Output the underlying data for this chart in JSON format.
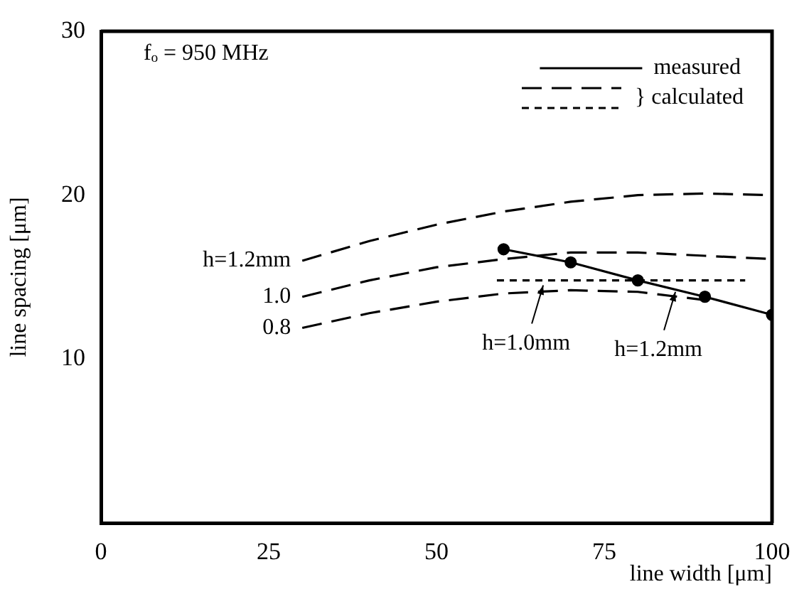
{
  "chart_data": {
    "type": "line",
    "xlabel": "line width [μm]",
    "ylabel": "line spacing [μm]",
    "xlim": [
      0,
      100
    ],
    "ylim": [
      0,
      30
    ],
    "xticks": [
      0,
      25,
      50,
      75,
      100
    ],
    "yticks": [
      10,
      20,
      30
    ],
    "grid": false,
    "legend": "top right",
    "annotations": [
      "fₒ = 950 MHz",
      "} calculated",
      {
        "text": "h=1.0mm",
        "x": 65.9,
        "y": 14.5
      },
      {
        "text": "h=1.2mm",
        "x": 85.6,
        "y": 14.1
      }
    ],
    "series": [
      {
        "name": "measured",
        "color": "#000000",
        "marker": "circle",
        "line_style": "solid",
        "x": [
          60,
          70,
          80,
          90,
          100
        ],
        "values": [
          16.7,
          15.9,
          14.8,
          13.8,
          12.7
        ]
      },
      {
        "name": "h=1.2mm",
        "color": "#000000",
        "marker": "none",
        "line_style": "dashed",
        "x": [
          30,
          40,
          50,
          60,
          70,
          80,
          90,
          100
        ],
        "values": [
          16,
          17.2,
          18.2,
          19,
          19.6,
          20,
          20.1,
          20
        ]
      },
      {
        "name": "1.0",
        "color": "#000000",
        "marker": "none",
        "line_style": "dashed",
        "x": [
          30,
          40,
          50,
          60,
          70,
          80,
          90,
          100
        ],
        "values": [
          13.8,
          14.8,
          15.6,
          16.1,
          16.5,
          16.5,
          16.3,
          16.1
        ]
      },
      {
        "name": "0.8",
        "color": "#000000",
        "marker": "none",
        "line_style": "dashed",
        "x": [
          30,
          40,
          50,
          60,
          70,
          80,
          90
        ],
        "values": [
          11.9,
          12.8,
          13.5,
          14,
          14.2,
          14.1,
          13.6
        ]
      },
      {
        "color": "#000000",
        "marker": "none",
        "line_style": "dotted",
        "x": [
          59,
          96
        ],
        "values": [
          14.8,
          14.8
        ]
      }
    ]
  }
}
